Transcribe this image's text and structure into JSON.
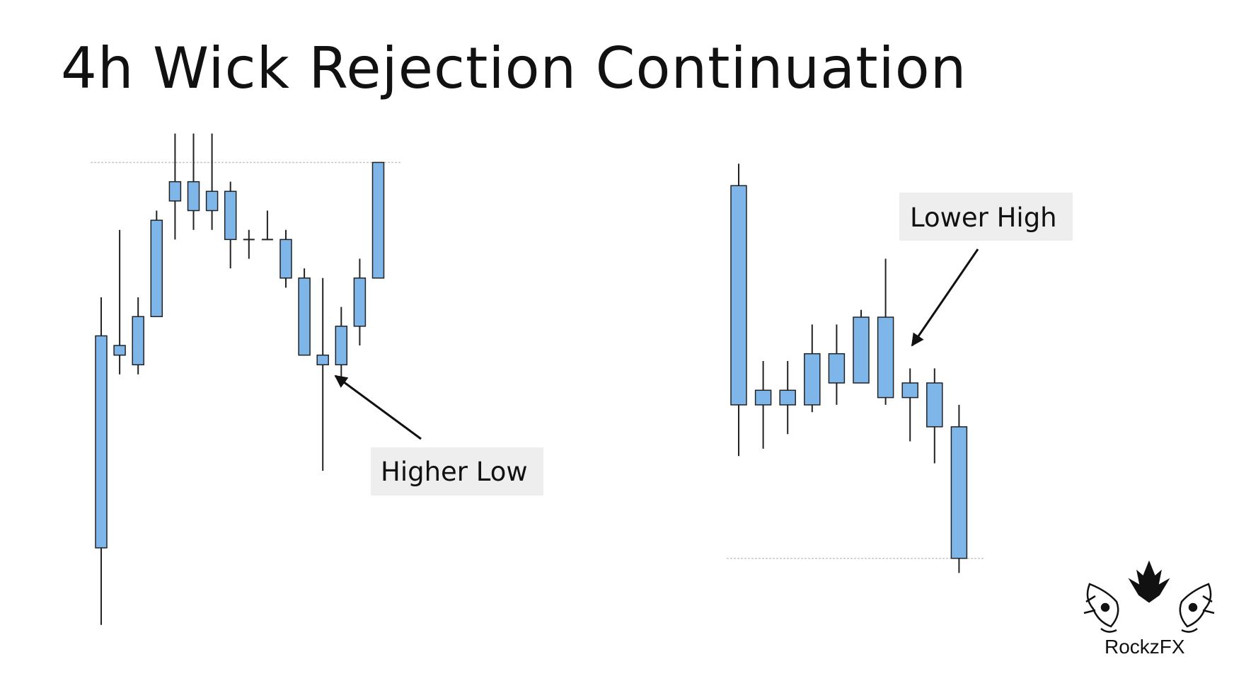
{
  "title": "4h Wick Rejection Continuation",
  "logo": {
    "text": "RockzFX",
    "icon": "tiger-icon"
  },
  "colors": {
    "candle_body": "#7eb6ea",
    "candle_outline": "#222222",
    "level_line": "#c8c8c8",
    "callout_bg": "#eeeeee"
  },
  "chart_data": [
    {
      "type": "candlestick",
      "title": "",
      "annotation": "Higher Low",
      "level": "resistance",
      "candles": [
        {
          "open": 98,
          "close": 120,
          "high": 124,
          "low": 90
        },
        {
          "open": 118,
          "close": 119,
          "high": 131,
          "low": 116
        },
        {
          "open": 117,
          "close": 122,
          "high": 124,
          "low": 116
        },
        {
          "open": 122,
          "close": 132,
          "high": 133,
          "low": 122
        },
        {
          "open": 134,
          "close": 136,
          "high": 141,
          "low": 130
        },
        {
          "open": 136,
          "close": 133,
          "high": 141,
          "low": 131
        },
        {
          "open": 135,
          "close": 133,
          "high": 141,
          "low": 131
        },
        {
          "open": 135,
          "close": 130,
          "high": 136,
          "low": 127
        },
        {
          "open": 130,
          "close": 130,
          "high": 131,
          "low": 128
        },
        {
          "open": 130,
          "close": 130,
          "high": 133,
          "low": 130
        },
        {
          "open": 130,
          "close": 126,
          "high": 131,
          "low": 125
        },
        {
          "open": 126,
          "close": 118,
          "high": 127,
          "low": 118
        },
        {
          "open": 118,
          "close": 117,
          "high": 126,
          "low": 106
        },
        {
          "open": 117,
          "close": 121,
          "high": 123,
          "low": 115
        },
        {
          "open": 121,
          "close": 126,
          "high": 128,
          "low": 119
        },
        {
          "open": 126,
          "close": 138,
          "high": 138,
          "low": 126
        }
      ],
      "level_value": 138,
      "ylim": [
        88,
        142
      ]
    },
    {
      "type": "candlestick",
      "title": "",
      "annotation": "Lower High",
      "level": "support",
      "candles": [
        {
          "open": 80,
          "close": 50,
          "high": 83,
          "low": 43
        },
        {
          "open": 50,
          "close": 52,
          "high": 56,
          "low": 44
        },
        {
          "open": 50,
          "close": 52,
          "high": 56,
          "low": 46
        },
        {
          "open": 50,
          "close": 57,
          "high": 61,
          "low": 49
        },
        {
          "open": 53,
          "close": 57,
          "high": 61,
          "low": 50
        },
        {
          "open": 53,
          "close": 62,
          "high": 63,
          "low": 53
        },
        {
          "open": 62,
          "close": 51,
          "high": 70,
          "low": 50
        },
        {
          "open": 53,
          "close": 51,
          "high": 55,
          "low": 45
        },
        {
          "open": 53,
          "close": 47,
          "high": 55,
          "low": 42
        },
        {
          "open": 47,
          "close": 29,
          "high": 50,
          "low": 27
        }
      ],
      "level_value": 29,
      "ylim": [
        25,
        87
      ]
    }
  ]
}
